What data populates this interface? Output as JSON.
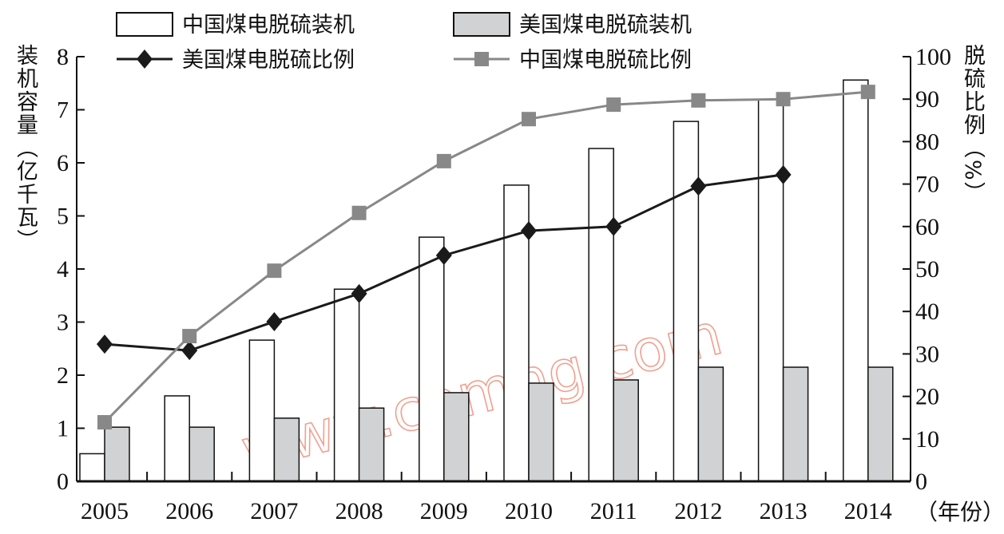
{
  "chart_data": {
    "type": "bar",
    "categories": [
      "2005",
      "2006",
      "2007",
      "2008",
      "2009",
      "2010",
      "2011",
      "2012",
      "2013",
      "2014"
    ],
    "xlabel": "（年份）",
    "ylabel": "装机容量（亿千瓦）",
    "ylabel_right": "脱硫比例（%）",
    "ylim": [
      0,
      8
    ],
    "ylim_right": [
      0,
      100
    ],
    "yticks": [
      0,
      1,
      2,
      3,
      4,
      5,
      6,
      7,
      8
    ],
    "yticks_right": [
      0,
      10,
      20,
      30,
      40,
      50,
      60,
      70,
      80,
      90,
      100
    ],
    "grid": false,
    "legend_placement": "top",
    "series": [
      {
        "name": "中国煤电脱硫装机",
        "kind": "bar",
        "axis": "left",
        "color": "#ffffff",
        "values": [
          0.52,
          1.61,
          2.66,
          3.62,
          4.6,
          5.58,
          6.27,
          6.78,
          7.19,
          7.56
        ]
      },
      {
        "name": "美国煤电脱硫装机",
        "kind": "bar",
        "axis": "left",
        "color": "#d0d2d4",
        "values": [
          1.02,
          1.02,
          1.19,
          1.38,
          1.67,
          1.85,
          1.91,
          2.15,
          2.15,
          2.15
        ]
      },
      {
        "name": "美国煤电脱硫比例",
        "kind": "line",
        "axis": "right",
        "marker": "diamond",
        "color": "#1a1a1a",
        "values": [
          32.3,
          30.8,
          37.6,
          44.2,
          53.2,
          59,
          60,
          69.5,
          72.2,
          null
        ]
      },
      {
        "name": "中国煤电脱硫比例",
        "kind": "line",
        "axis": "right",
        "marker": "square",
        "color": "#888888",
        "values": [
          13.9,
          34.2,
          49.6,
          63.2,
          75.4,
          85.3,
          88.7,
          89.7,
          90,
          91.7
        ]
      }
    ]
  },
  "watermark": "www.cnmhg.com"
}
